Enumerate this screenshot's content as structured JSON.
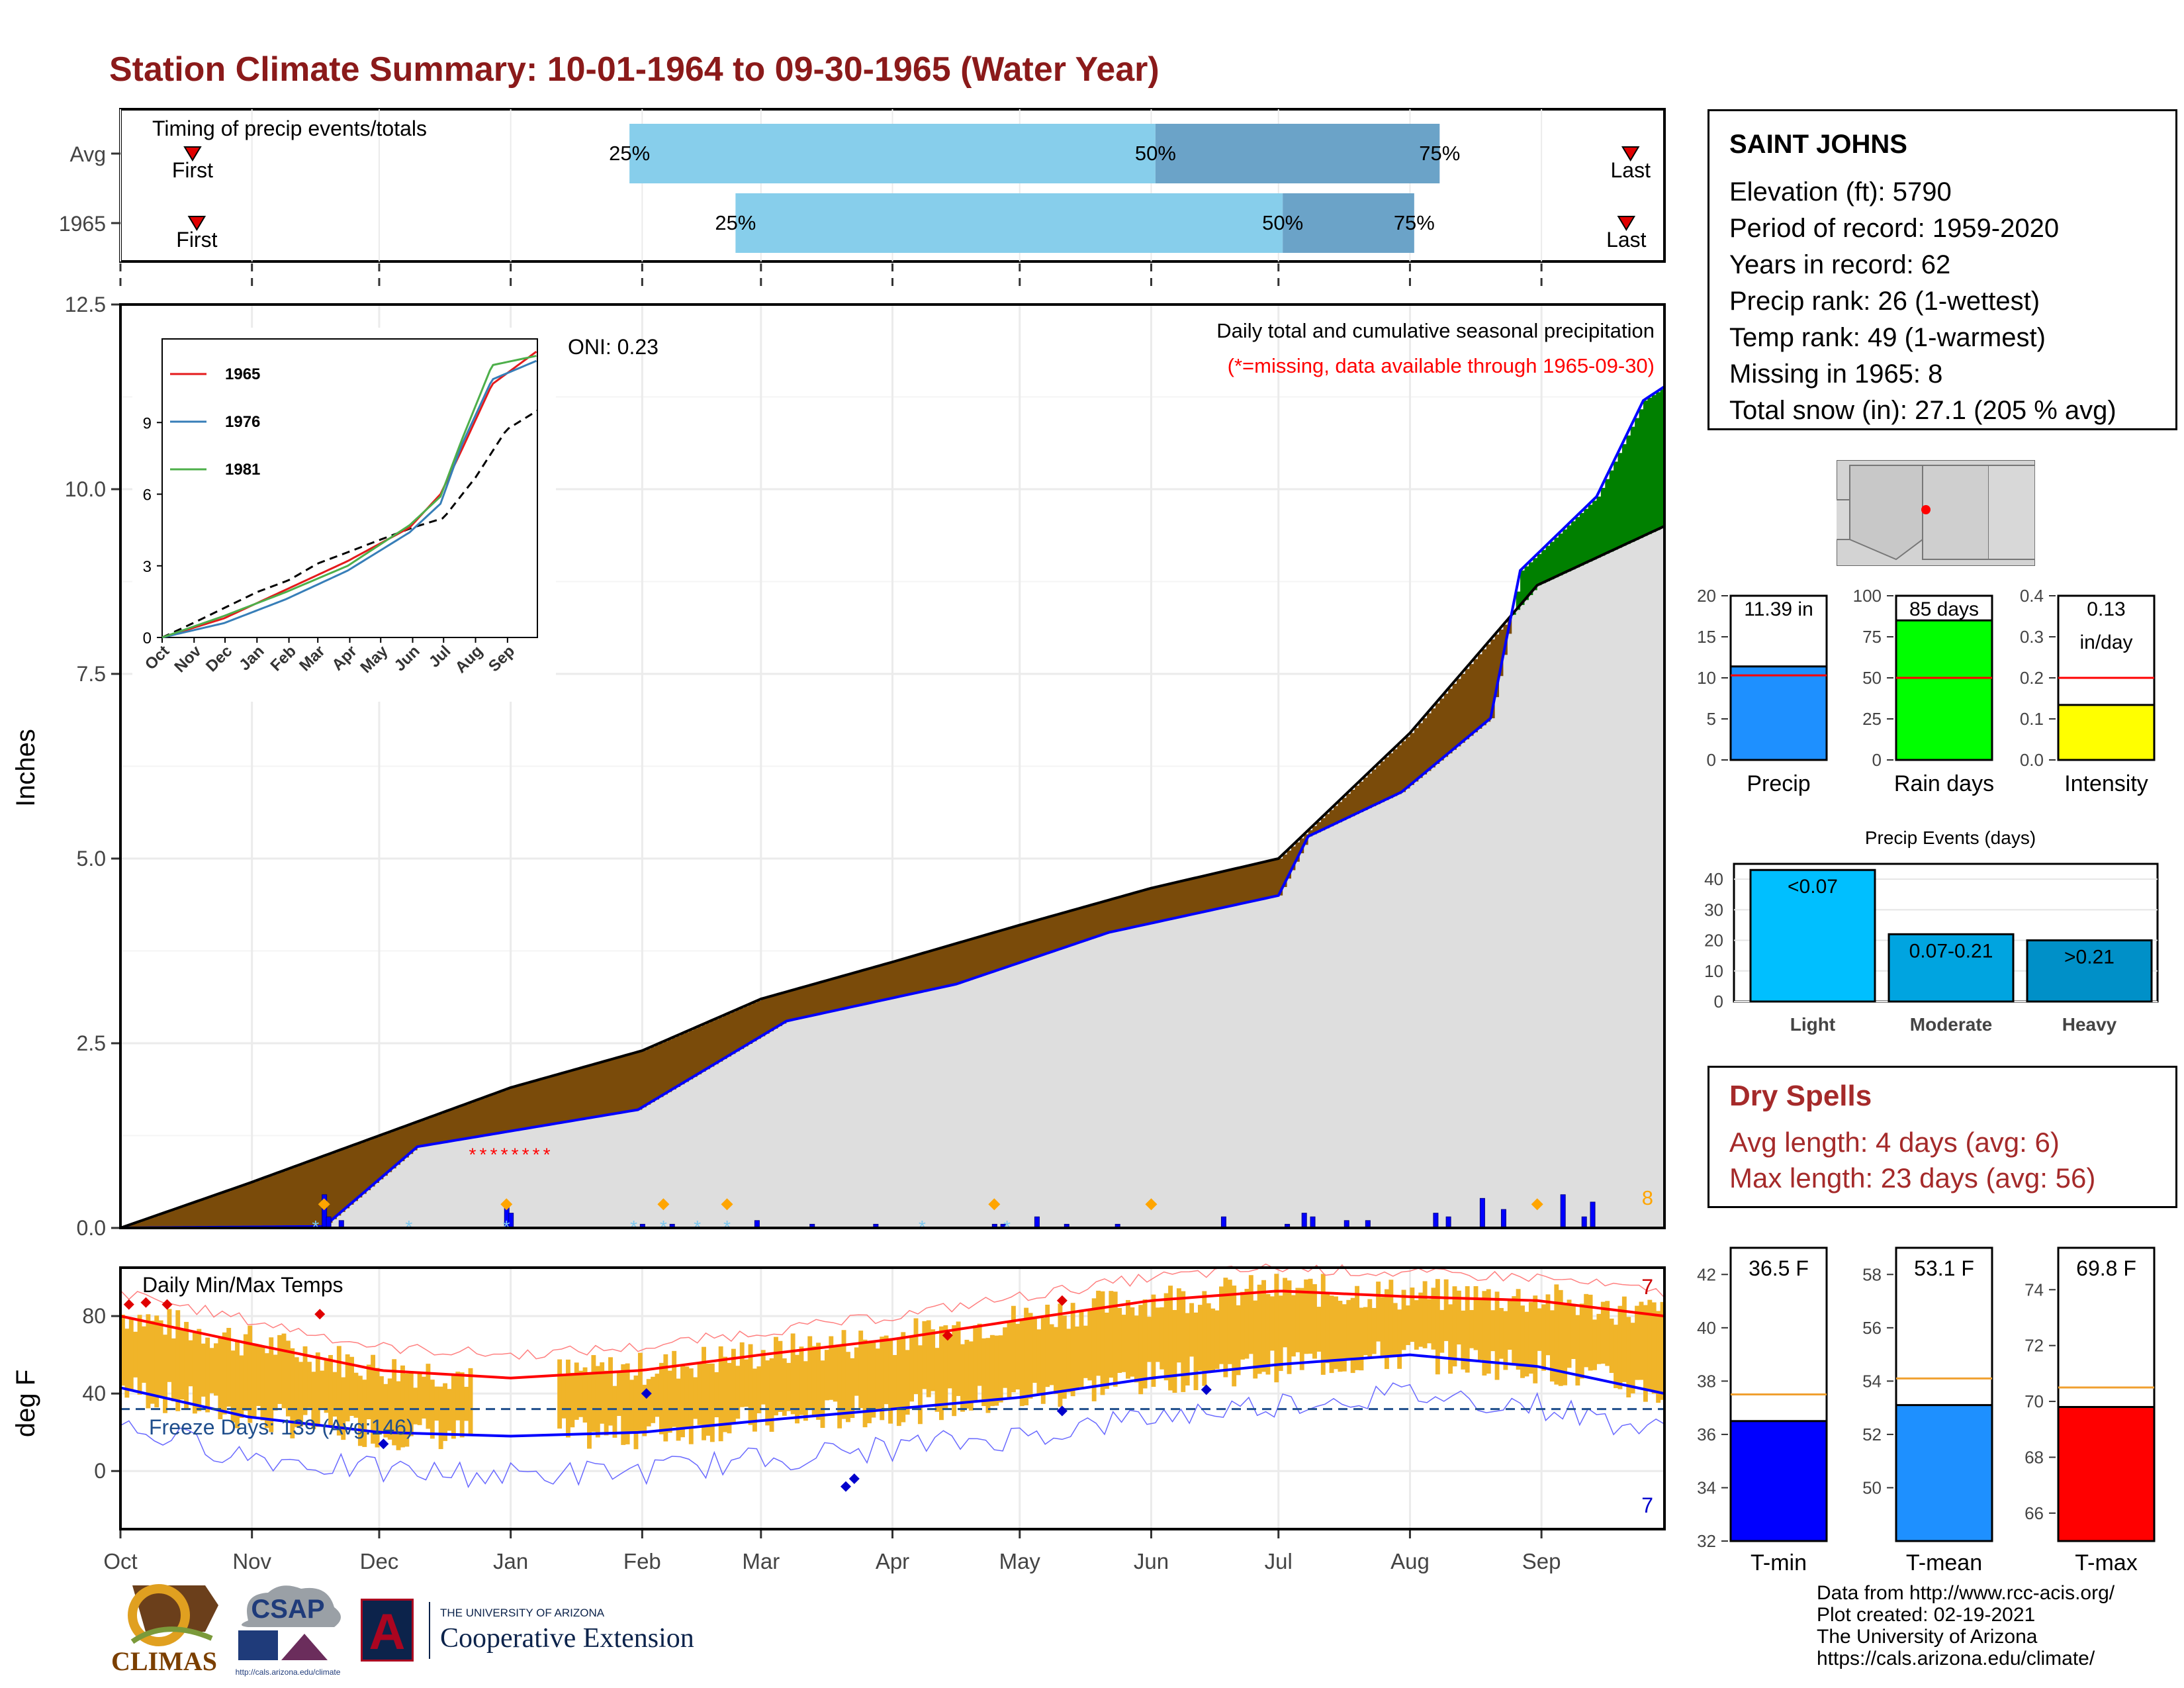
{
  "title": "Station Climate Summary: 10-01-1964 to 09-30-1965 (Water Year)",
  "colors": {
    "title": "#8b1a1a",
    "deficit": "#7a4b0a",
    "surplus": "#008000",
    "avg_fill": "#dedede",
    "precip_line": "#0000ff",
    "tmax_avg": "#ff0000",
    "tmin_avg": "#0000ff",
    "temp_bar": "#f0b429",
    "quart_light": "#87ceeb",
    "quart_dark": "#6ba3c8"
  },
  "timing": {
    "label": "Timing of precip events/totals",
    "rows": [
      {
        "name": "Avg",
        "first": "First",
        "last": "Last",
        "q25": "25%",
        "q50": "50%",
        "q75": "75%",
        "first_day": 17,
        "q25_day": 120,
        "q50_day": 244,
        "q75_day": 311,
        "last_day": 356
      },
      {
        "name": "1965",
        "first": "First",
        "last": "Last",
        "q25": "25%",
        "q50": "50%",
        "q75": "75%",
        "first_day": 18,
        "q25_day": 145,
        "q50_day": 274,
        "q75_day": 305,
        "last_day": 355
      }
    ]
  },
  "precip_panel": {
    "ylabel": "Inches",
    "yticks": [
      "0.0",
      "2.5",
      "5.0",
      "7.5",
      "10.0",
      "12.5"
    ],
    "header": "Daily total and cumulative seasonal precipitation",
    "missing_note": "(*=missing, data available through 1965-09-30)",
    "oni": "ONI: 0.23",
    "missing_count": "8"
  },
  "inset": {
    "legend": [
      "1965",
      "1976",
      "1981"
    ],
    "legend_colors": [
      "#e41a1c",
      "#377eb8",
      "#4daf4a"
    ],
    "yticks": [
      "0",
      "3",
      "6",
      "9"
    ],
    "xticks": [
      "Oct",
      "Nov",
      "Dec",
      "Jan",
      "Feb",
      "Mar",
      "Apr",
      "May",
      "Jun",
      "Jul",
      "Aug",
      "Sep"
    ]
  },
  "temp_panel": {
    "ylabel": "deg F",
    "title": "Daily Min/Max Temps",
    "freeze": "Freeze Days: 139 (Avg:146)",
    "yticks": [
      "0",
      "40",
      "80"
    ],
    "count_max": "7",
    "count_min": "7"
  },
  "months": [
    "Oct",
    "Nov",
    "Dec",
    "Jan",
    "Feb",
    "Mar",
    "Apr",
    "May",
    "Jun",
    "Jul",
    "Aug",
    "Sep"
  ],
  "station": {
    "name": "SAINT JOHNS",
    "lines": [
      "Elevation (ft): 5790",
      "Period of record: 1959-2020",
      "Years in record: 62",
      "Precip rank: 26 (1-wettest)",
      "Temp rank: 49 (1-warmest)",
      "Missing in 1965: 8",
      "Total snow (in): 27.1 (205 % avg)"
    ]
  },
  "mini_bars": [
    {
      "label": "Precip",
      "value_text": "11.39 in",
      "value": 11.39,
      "avg": 10.3,
      "ymax": 20,
      "yticks": [
        "0",
        "5",
        "10",
        "15",
        "20"
      ],
      "color": "#1e90ff"
    },
    {
      "label": "Rain days",
      "value_text": "85 days",
      "value": 85,
      "avg": 50,
      "ymax": 100,
      "yticks": [
        "0",
        "25",
        "50",
        "75",
        "100"
      ],
      "color": "#00ff00"
    },
    {
      "label": "Intensity",
      "value_text": "0.13",
      "value_text2": "in/day",
      "value": 0.134,
      "avg": 0.2,
      "ymax": 0.4,
      "yticks": [
        "0.0",
        "0.1",
        "0.2",
        "0.3",
        "0.4"
      ],
      "color": "#ffff00"
    }
  ],
  "precip_events": {
    "title": "Precip Events (days)",
    "yticks": [
      "0",
      "10",
      "20",
      "30",
      "40"
    ],
    "categories": [
      "Light",
      "Moderate",
      "Heavy"
    ],
    "bar_labels": [
      "<0.07",
      "0.07-0.21",
      ">0.21"
    ],
    "values": [
      43,
      22,
      20
    ],
    "colors": [
      "#00bfff",
      "#00a4e0",
      "#0090c8"
    ]
  },
  "dry_spells": {
    "title": "Dry Spells",
    "avg": "Avg length: 4 days (avg: 6)",
    "max": "Max length: 23 days (avg: 56)"
  },
  "temp_bars": [
    {
      "label": "T-min",
      "value_text": "36.5 F",
      "value": 36.5,
      "avg": 37.5,
      "ymin": 32,
      "ymax": 43,
      "yticks": [
        "32",
        "34",
        "36",
        "38",
        "40",
        "42"
      ],
      "color": "#0000ff"
    },
    {
      "label": "T-mean",
      "value_text": "53.1 F",
      "value": 53.1,
      "avg": 54.1,
      "ymin": 48,
      "ymax": 59,
      "yticks": [
        "50",
        "52",
        "54",
        "56",
        "58"
      ],
      "color": "#1e90ff"
    },
    {
      "label": "T-max",
      "value_text": "69.8 F",
      "value": 69.8,
      "avg": 70.5,
      "ymin": 65,
      "ymax": 75.5,
      "yticks": [
        "66",
        "68",
        "70",
        "72",
        "74"
      ],
      "color": "#ff0000"
    }
  ],
  "credits": [
    "Data from http://www.rcc-acis.org/",
    "Plot created: 02-19-2021",
    "The University of Arizona",
    "https://cals.arizona.edu/climate/"
  ],
  "logos": {
    "climas": "CLIMAS",
    "csap": "CSAP",
    "csap_url": "http://cals.arizona.edu/climate",
    "ua_line1": "THE UNIVERSITY OF ARIZONA",
    "ua_line2": "Cooperative Extension",
    "ua_mark": "A"
  },
  "chart_data": [
    {
      "type": "area",
      "title": "Daily total and cumulative seasonal precipitation",
      "ylabel": "Inches",
      "ylim": [
        0,
        12.5
      ],
      "x_unit": "day of water year (0 = Oct 1)",
      "cumulative_1965": {
        "x": [
          0,
          48,
          70,
          122,
          157,
          197,
          233,
          273,
          280,
          302,
          323,
          330,
          348,
          359,
          364
        ],
        "y": [
          0.0,
          0.02,
          1.1,
          1.6,
          2.8,
          3.3,
          4.0,
          4.5,
          5.3,
          5.9,
          6.9,
          8.9,
          9.9,
          11.2,
          11.39
        ]
      },
      "cumulative_avg": {
        "x": [
          0,
          30,
          61,
          92,
          123,
          151,
          182,
          212,
          243,
          273,
          304,
          334,
          364
        ],
        "y": [
          0.0,
          0.6,
          1.25,
          1.9,
          2.4,
          3.1,
          3.6,
          4.1,
          4.6,
          5.0,
          6.7,
          8.7,
          9.5
        ]
      },
      "daily_precip": {
        "x": [
          48,
          49,
          52,
          91,
          92,
          123,
          130,
          150,
          163,
          178,
          206,
          208,
          216,
          223,
          235,
          260,
          275,
          279,
          281,
          289,
          294,
          310,
          313,
          321,
          326,
          340,
          345,
          347
        ],
        "y": [
          0.45,
          0.15,
          0.1,
          0.3,
          0.2,
          0.05,
          0.05,
          0.1,
          0.05,
          0.05,
          0.05,
          0.05,
          0.15,
          0.05,
          0.05,
          0.15,
          0.05,
          0.2,
          0.15,
          0.1,
          0.1,
          0.2,
          0.15,
          0.4,
          0.25,
          0.45,
          0.15,
          0.35
        ]
      }
    },
    {
      "type": "line",
      "title": "",
      "legend": [
        "1965",
        "1976",
        "1981"
      ],
      "ylim": [
        0,
        12.5
      ],
      "series": [
        {
          "name": "1965",
          "x": [
            0,
            60,
            120,
            180,
            240,
            270,
            290,
            320,
            364
          ],
          "y": [
            0,
            0.8,
            2.0,
            3.2,
            4.6,
            6.0,
            7.8,
            10.6,
            12.0
          ]
        },
        {
          "name": "1976",
          "x": [
            0,
            60,
            120,
            180,
            240,
            270,
            290,
            320,
            364
          ],
          "y": [
            0,
            0.6,
            1.6,
            2.8,
            4.4,
            5.6,
            8.0,
            10.8,
            11.6
          ]
        },
        {
          "name": "1981",
          "x": [
            0,
            60,
            120,
            180,
            240,
            270,
            290,
            320,
            364
          ],
          "y": [
            0,
            0.9,
            1.9,
            3.0,
            4.7,
            5.9,
            8.2,
            11.4,
            11.8
          ]
        }
      ]
    },
    {
      "type": "bar",
      "title": "Daily Min/Max Temps",
      "ylabel": "deg F",
      "ylim": [
        -30,
        105
      ],
      "avg_tmax": {
        "x": [
          0,
          30,
          61,
          92,
          123,
          151,
          182,
          212,
          243,
          273,
          304,
          334,
          364
        ],
        "y": [
          80,
          66,
          52,
          48,
          52,
          60,
          68,
          78,
          88,
          93,
          90,
          88,
          80
        ]
      },
      "avg_tmin": {
        "x": [
          0,
          30,
          61,
          92,
          123,
          151,
          182,
          212,
          243,
          273,
          304,
          334,
          364
        ],
        "y": [
          43,
          28,
          20,
          18,
          20,
          26,
          32,
          38,
          48,
          55,
          60,
          54,
          40
        ]
      },
      "freeze_threshold": 32
    }
  ]
}
